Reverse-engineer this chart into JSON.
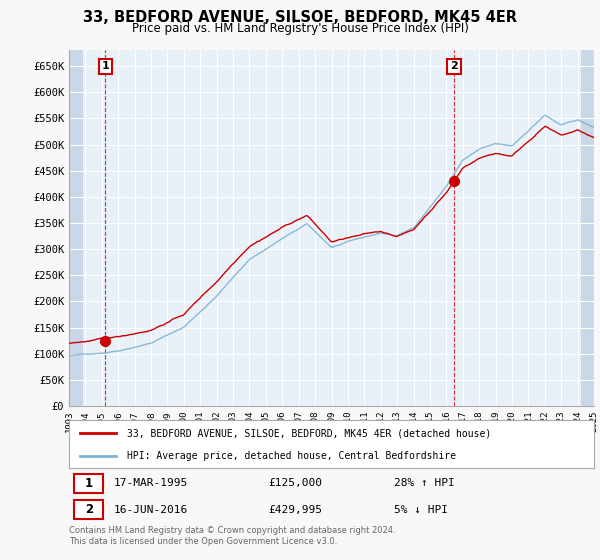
{
  "title": "33, BEDFORD AVENUE, SILSOE, BEDFORD, MK45 4ER",
  "subtitle": "Price paid vs. HM Land Registry's House Price Index (HPI)",
  "ylabel_ticks": [
    "£0",
    "£50K",
    "£100K",
    "£150K",
    "£200K",
    "£250K",
    "£300K",
    "£350K",
    "£400K",
    "£450K",
    "£500K",
    "£550K",
    "£600K",
    "£650K"
  ],
  "ytick_values": [
    0,
    50000,
    100000,
    150000,
    200000,
    250000,
    300000,
    350000,
    400000,
    450000,
    500000,
    550000,
    600000,
    650000
  ],
  "ylim": [
    0,
    680000
  ],
  "sale1_date": 1995.21,
  "sale1_price": 125000,
  "sale2_date": 2016.46,
  "sale2_price": 429995,
  "legend_line1": "33, BEDFORD AVENUE, SILSOE, BEDFORD, MK45 4ER (detached house)",
  "legend_line2": "HPI: Average price, detached house, Central Bedfordshire",
  "copyright": "Contains HM Land Registry data © Crown copyright and database right 2024.\nThis data is licensed under the Open Government Licence v3.0.",
  "line_color_red": "#cc0000",
  "line_color_blue": "#7fb3d3",
  "background_plot": "#e8f0f8",
  "background_fig": "#f8f8f8",
  "grid_color": "#ffffff",
  "hatch_color": "#c8d8e8",
  "xmin": 1993,
  "xmax": 2025
}
